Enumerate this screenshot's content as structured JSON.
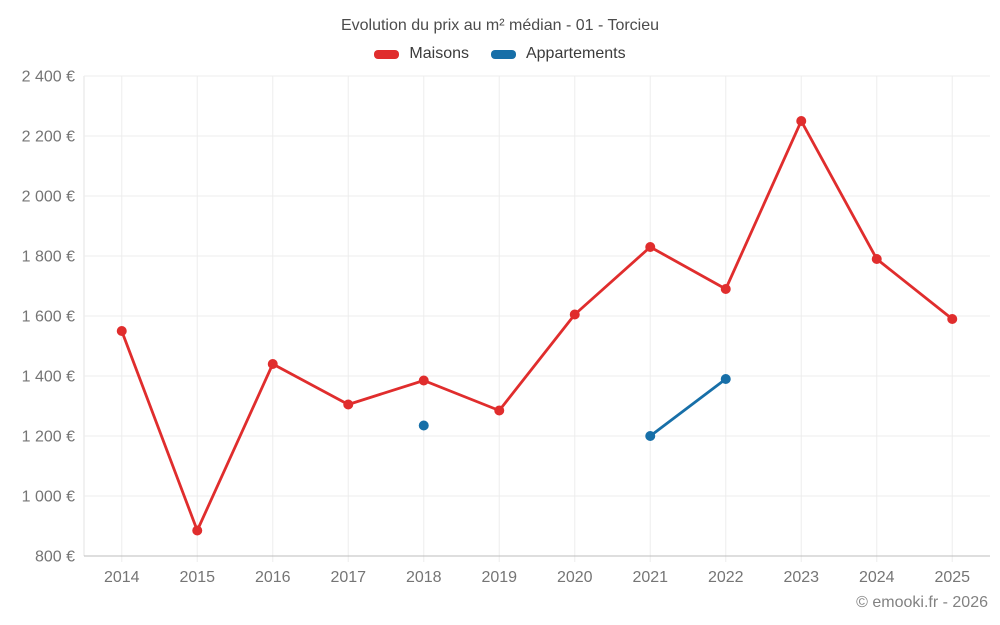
{
  "header": {
    "title": "Evolution du prix au m² médian - 01 - Torcieu"
  },
  "legend": {
    "items": [
      {
        "id": "maisons",
        "label": "Maisons",
        "color": "#e02d2d"
      },
      {
        "id": "appartements",
        "label": "Appartements",
        "color": "#176fa8"
      }
    ]
  },
  "footer": {
    "credit": "© emooki.fr - 2026"
  },
  "chart_data": {
    "type": "line",
    "title": "Evolution du prix au m² médian - 01 - Torcieu",
    "categories": [
      2014,
      2015,
      2016,
      2017,
      2018,
      2019,
      2020,
      2021,
      2022,
      2023,
      2024,
      2025
    ],
    "series": [
      {
        "name": "Maisons",
        "color": "#e02d2d",
        "values": [
          1550,
          885,
          1440,
          1305,
          1385,
          1285,
          1605,
          1830,
          1690,
          2250,
          1790,
          1590
        ]
      },
      {
        "name": "Appartements",
        "color": "#176fa8",
        "values": [
          null,
          null,
          null,
          null,
          1235,
          null,
          null,
          1200,
          1390,
          null,
          null,
          null
        ]
      }
    ],
    "xlabel": "",
    "ylabel": "",
    "ylim": [
      800,
      2400
    ],
    "ytick_step": 200,
    "ytick_suffix": " €",
    "grid": true,
    "legend_position": "top",
    "axis_colors": {
      "gridline": "#ededed",
      "axis_line": "#bdbdbd",
      "tick_label": "#757575"
    }
  }
}
